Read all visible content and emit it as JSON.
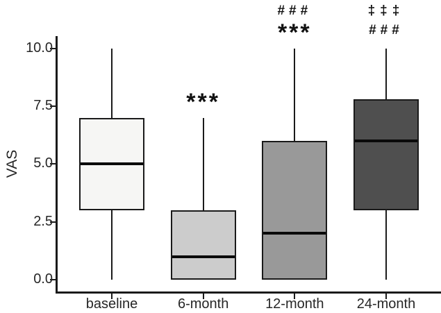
{
  "chart_data": {
    "type": "boxplot",
    "title": "",
    "xlabel": "",
    "ylabel": "VAS",
    "ylim": [
      0,
      10
    ],
    "grid": false,
    "legend": false,
    "yticks": [
      {
        "value": 10.0,
        "label": "10.0"
      },
      {
        "value": 7.5,
        "label": "7.5"
      },
      {
        "value": 5.0,
        "label": "5.0"
      },
      {
        "value": 2.5,
        "label": "2.5"
      },
      {
        "value": 0.0,
        "label": "0.0"
      }
    ],
    "categories": [
      "baseline",
      "6-month",
      "12-month",
      "24-month"
    ],
    "boxes": [
      {
        "label": "baseline",
        "whisker_low": 0,
        "q1": 3,
        "median": 5,
        "q3": 7,
        "whisker_high": 10,
        "fill": "#f6f6f4",
        "pattern": "dots",
        "annotations": []
      },
      {
        "label": "6-month",
        "whisker_low": 0,
        "q1": 0,
        "median": 1,
        "q3": 3,
        "whisker_high": 7,
        "fill": "#cccccc",
        "pattern": "none",
        "annotations": [
          {
            "text": "***",
            "kind": "star"
          }
        ]
      },
      {
        "label": "12-month",
        "whisker_low": 0,
        "q1": 0,
        "median": 2,
        "q3": 6,
        "whisker_high": 10,
        "fill": "#999999",
        "pattern": "none",
        "annotations": [
          {
            "text": "###",
            "kind": "hash"
          },
          {
            "text": "***",
            "kind": "star"
          }
        ]
      },
      {
        "label": "24-month",
        "whisker_low": 0,
        "q1": 3,
        "median": 6,
        "q3": 7.8,
        "whisker_high": 10,
        "fill": "#4f4f4f",
        "pattern": "none",
        "annotations": [
          {
            "text": "‡‡‡",
            "kind": "dagger"
          },
          {
            "text": "###",
            "kind": "hash"
          }
        ]
      }
    ],
    "colors": {
      "axis": "#1a1a1a",
      "box_border": "#1a1a1a",
      "median_line": "#0a0a0a",
      "tick_text": "#262626",
      "annotation_text": "#111111",
      "background": "#ffffff"
    }
  }
}
